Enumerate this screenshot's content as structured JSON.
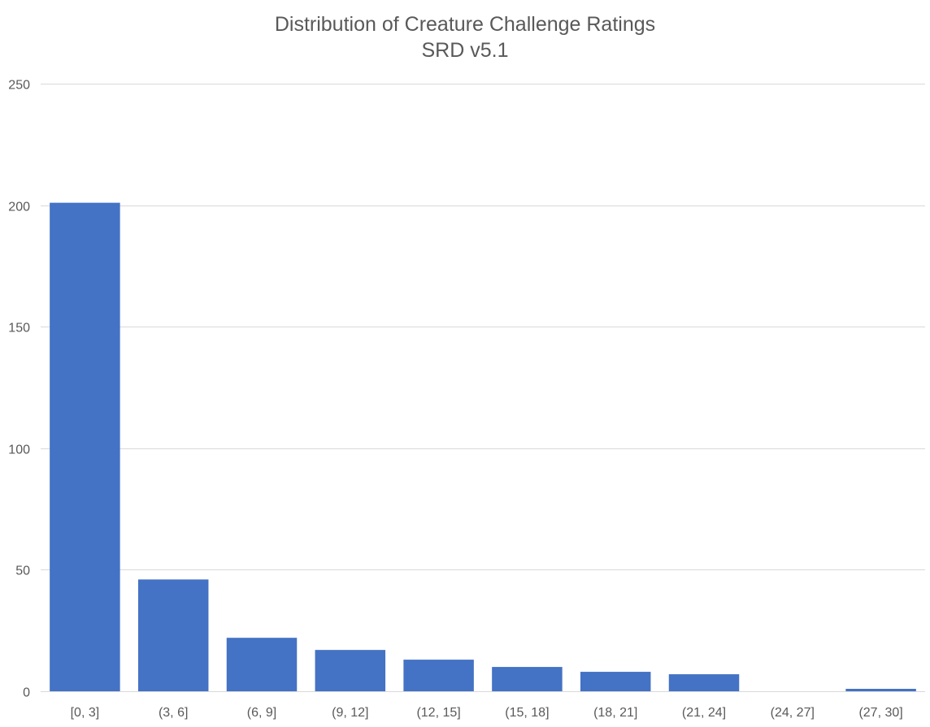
{
  "chart_data": {
    "type": "bar",
    "title": "Distribution of Creature Challenge Ratings",
    "subtitle": "SRD v5.1",
    "xlabel": "",
    "ylabel": "",
    "categories": [
      "[0, 3]",
      "(3, 6]",
      "(6, 9]",
      "(9, 12]",
      "(12, 15]",
      "(15, 18]",
      "(18, 21]",
      "(21, 24]",
      "(24, 27]",
      "(27, 30]"
    ],
    "values": [
      201,
      46,
      22,
      17,
      13,
      10,
      8,
      7,
      0,
      1
    ],
    "ylim": [
      0,
      250
    ],
    "yticks": [
      0,
      50,
      100,
      150,
      200,
      250
    ],
    "grid": true,
    "legend": "none",
    "bar_color": "#4472C4",
    "grid_color": "#D9D9D9"
  }
}
